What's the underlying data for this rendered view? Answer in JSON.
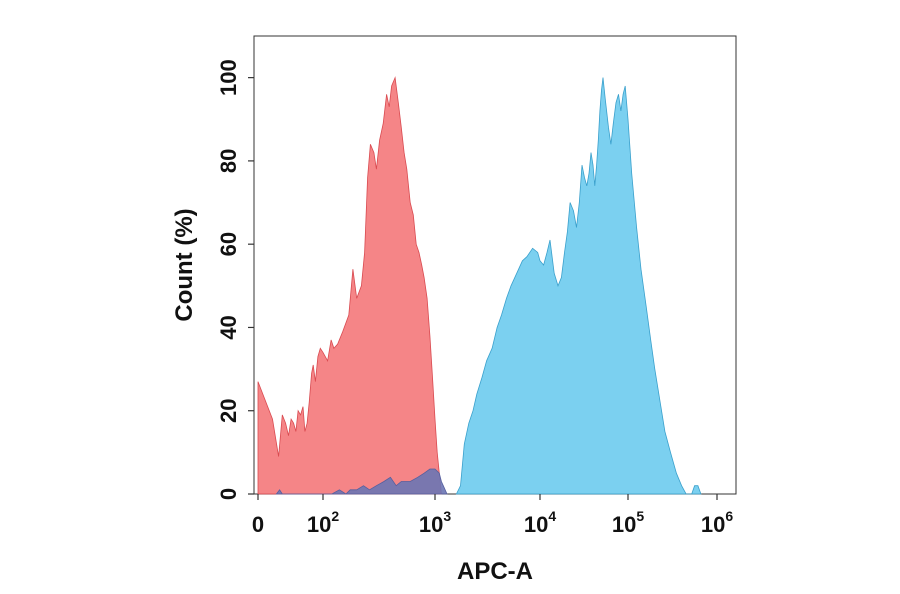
{
  "chart_data": {
    "type": "area",
    "title": "",
    "xlabel": "APC-A",
    "ylabel": "Count  (%)",
    "x_scale": "biexponential",
    "xlim": [
      0,
      1000000
    ],
    "ylim": [
      0,
      110
    ],
    "x_ticks": [
      {
        "value": 0,
        "base": "0",
        "exp": ""
      },
      {
        "value": 100,
        "base": "10",
        "exp": "2"
      },
      {
        "value": 1000,
        "base": "10",
        "exp": "3"
      },
      {
        "value": 10000,
        "base": "10",
        "exp": "4"
      },
      {
        "value": 100000,
        "base": "10",
        "exp": "5"
      },
      {
        "value": 1000000,
        "base": "10",
        "exp": "6"
      }
    ],
    "y_ticks": [
      0,
      20,
      40,
      60,
      80,
      100
    ],
    "grid": false,
    "series": [
      {
        "color": "#f4787a",
        "edge": "#d94a50",
        "opacity": 0.9,
        "points": [
          [
            0,
            27
          ],
          [
            5,
            18
          ],
          [
            10,
            9
          ],
          [
            14,
            19
          ],
          [
            18,
            17
          ],
          [
            22,
            14
          ],
          [
            26,
            18
          ],
          [
            30,
            17
          ],
          [
            34,
            15
          ],
          [
            38,
            20
          ],
          [
            43,
            19
          ],
          [
            48,
            21
          ],
          [
            52,
            15
          ],
          [
            57,
            17
          ],
          [
            62,
            22
          ],
          [
            68,
            29
          ],
          [
            72,
            31
          ],
          [
            78,
            27
          ],
          [
            85,
            33
          ],
          [
            92,
            35
          ],
          [
            100,
            34
          ],
          [
            110,
            32
          ],
          [
            118,
            37
          ],
          [
            125,
            35
          ],
          [
            135,
            36
          ],
          [
            150,
            39
          ],
          [
            170,
            43
          ],
          [
            185,
            54
          ],
          [
            200,
            47
          ],
          [
            220,
            50
          ],
          [
            235,
            58
          ],
          [
            250,
            76
          ],
          [
            265,
            84
          ],
          [
            285,
            82
          ],
          [
            300,
            78
          ],
          [
            320,
            85
          ],
          [
            345,
            89
          ],
          [
            370,
            96
          ],
          [
            390,
            93
          ],
          [
            410,
            98
          ],
          [
            440,
            100
          ],
          [
            470,
            94
          ],
          [
            500,
            88
          ],
          [
            530,
            82
          ],
          [
            560,
            78
          ],
          [
            600,
            70
          ],
          [
            640,
            67
          ],
          [
            680,
            60
          ],
          [
            720,
            58
          ],
          [
            760,
            55
          ],
          [
            800,
            52
          ],
          [
            850,
            47
          ],
          [
            900,
            38
          ],
          [
            950,
            28
          ],
          [
            1000,
            18
          ],
          [
            1050,
            10
          ],
          [
            1100,
            5
          ],
          [
            1150,
            0
          ]
        ]
      },
      {
        "color": "#6dcbee",
        "edge": "#3aa0cc",
        "opacity": 0.9,
        "points": [
          [
            1600,
            0
          ],
          [
            1750,
            2
          ],
          [
            1900,
            12
          ],
          [
            2100,
            17
          ],
          [
            2300,
            20
          ],
          [
            2500,
            24
          ],
          [
            2800,
            28
          ],
          [
            3100,
            32
          ],
          [
            3500,
            35
          ],
          [
            3900,
            40
          ],
          [
            4300,
            43
          ],
          [
            4800,
            47
          ],
          [
            5300,
            50
          ],
          [
            6000,
            53
          ],
          [
            6800,
            56
          ],
          [
            7500,
            57
          ],
          [
            8500,
            59
          ],
          [
            9500,
            58
          ],
          [
            10000,
            56
          ],
          [
            11000,
            55
          ],
          [
            12000,
            58
          ],
          [
            13000,
            61
          ],
          [
            14500,
            53
          ],
          [
            16000,
            50
          ],
          [
            17500,
            52
          ],
          [
            19000,
            58
          ],
          [
            20500,
            63
          ],
          [
            22000,
            70
          ],
          [
            24000,
            68
          ],
          [
            26000,
            64
          ],
          [
            28000,
            70
          ],
          [
            30000,
            79
          ],
          [
            32000,
            76
          ],
          [
            34000,
            74
          ],
          [
            36000,
            77
          ],
          [
            38000,
            82
          ],
          [
            40000,
            79
          ],
          [
            42000,
            74
          ],
          [
            44000,
            79
          ],
          [
            46000,
            85
          ],
          [
            48000,
            92
          ],
          [
            50000,
            97
          ],
          [
            52000,
            100
          ],
          [
            55000,
            95
          ],
          [
            60000,
            88
          ],
          [
            64000,
            84
          ],
          [
            68000,
            89
          ],
          [
            73000,
            94
          ],
          [
            78000,
            96
          ],
          [
            83000,
            92
          ],
          [
            88000,
            96
          ],
          [
            93000,
            98
          ],
          [
            100000,
            90
          ],
          [
            110000,
            77
          ],
          [
            125000,
            64
          ],
          [
            140000,
            54
          ],
          [
            160000,
            45
          ],
          [
            180000,
            37
          ],
          [
            200000,
            30
          ],
          [
            230000,
            22
          ],
          [
            260000,
            15
          ],
          [
            300000,
            10
          ],
          [
            350000,
            5
          ],
          [
            400000,
            2
          ],
          [
            450000,
            0
          ],
          [
            520000,
            0
          ],
          [
            560000,
            2
          ],
          [
            610000,
            2
          ],
          [
            660000,
            0
          ]
        ]
      },
      {
        "color": "#6b75b4",
        "edge": "#565f9e",
        "opacity": 0.9,
        "points": [
          [
            8,
            0
          ],
          [
            11,
            1
          ],
          [
            14,
            0
          ],
          [
            120,
            0
          ],
          [
            140,
            1
          ],
          [
            160,
            0
          ],
          [
            175,
            1
          ],
          [
            200,
            1
          ],
          [
            230,
            2
          ],
          [
            260,
            1
          ],
          [
            300,
            2
          ],
          [
            350,
            3
          ],
          [
            400,
            4
          ],
          [
            450,
            2
          ],
          [
            500,
            3
          ],
          [
            600,
            3
          ],
          [
            700,
            4
          ],
          [
            800,
            5
          ],
          [
            900,
            6
          ],
          [
            1000,
            6
          ],
          [
            1100,
            5
          ],
          [
            1150,
            3
          ],
          [
            1200,
            2
          ],
          [
            1300,
            0
          ]
        ]
      }
    ]
  }
}
